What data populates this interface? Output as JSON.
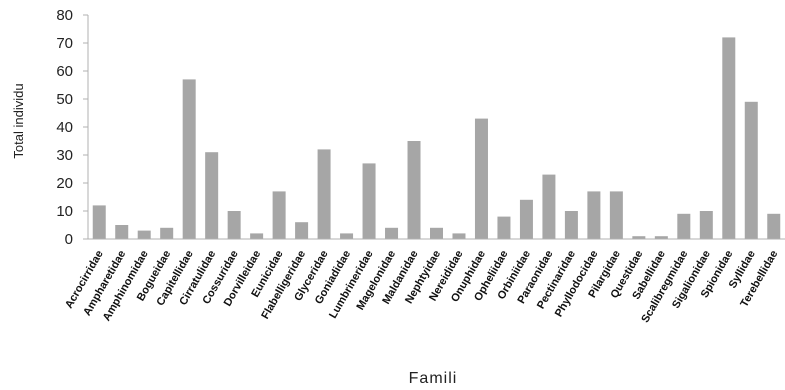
{
  "chart_data": {
    "type": "bar",
    "xlabel": "Famili",
    "ylabel": "Total individu",
    "ylim": [
      0,
      80
    ],
    "yticks": [
      0,
      10,
      20,
      30,
      40,
      50,
      60,
      70,
      80
    ],
    "grid": false,
    "bar_color": "#a6a6a6",
    "axis_color": "#b0b0b0",
    "categories": [
      "Acrocirridae",
      "Ampharetidae",
      "Amphinomidae",
      "Bogueidae",
      "Capitellidae",
      "Cirratulidae",
      "Cossuridae",
      "Dorvilleidae",
      "Eunicidae",
      "Flabelligeridae",
      "Glyceridae",
      "Goniadidae",
      "Lumbrineridae",
      "Magelonidae",
      "Maldanidae",
      "Nephtyidae",
      "Nereididae",
      "Onuphidae",
      "Opheliidae",
      "Orbiniidae",
      "Paraonidae",
      "Pectinaridae",
      "Phyllodocidae",
      "Pilargidae",
      "Questidae",
      "Sabellidae",
      "Scalibregmidae",
      "Sigalionidae",
      "Spionidae",
      "Syllidae",
      "Terebellidae"
    ],
    "values": [
      12,
      5,
      3,
      4,
      57,
      31,
      10,
      2,
      17,
      6,
      32,
      2,
      27,
      4,
      35,
      4,
      2,
      43,
      8,
      14,
      23,
      10,
      17,
      17,
      1,
      1,
      9,
      10,
      72,
      49,
      9
    ]
  }
}
